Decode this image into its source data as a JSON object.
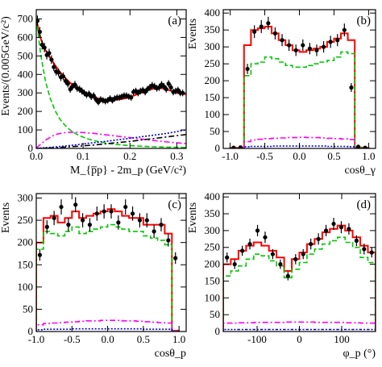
{
  "chart_data": [
    {
      "id": "a",
      "type": "line",
      "panel_label": "(a)",
      "xlabel": "M_{p̅p} - 2m_p (GeV/c²)",
      "ylabel": "Events/(0.005GeV/c²)",
      "xlim": [
        0,
        0.32
      ],
      "ylim": [
        0,
        750
      ],
      "xticks": [
        0,
        0.1,
        0.2,
        0.3
      ],
      "xtick_labels": [
        "0.0",
        "0.1",
        "0.2",
        "0.3"
      ],
      "yticks": [
        0,
        100,
        200,
        300,
        400,
        500,
        600,
        700
      ],
      "ytick_labels": [
        "0",
        "100",
        "200",
        "300",
        "400",
        "500",
        "600",
        "700"
      ],
      "legend": "none",
      "data_points": {
        "x": [
          0.0025,
          0.0075,
          0.0125,
          0.0175,
          0.0225,
          0.0275,
          0.0325,
          0.0375,
          0.0425,
          0.0475,
          0.0525,
          0.0575,
          0.0625,
          0.0675,
          0.0725,
          0.0775,
          0.0825,
          0.0875,
          0.0925,
          0.0975,
          0.1025,
          0.1075,
          0.1125,
          0.1175,
          0.1225,
          0.1275,
          0.1325,
          0.1375,
          0.1425,
          0.1475,
          0.1525,
          0.1575,
          0.1625,
          0.1675,
          0.1725,
          0.1775,
          0.1825,
          0.1875,
          0.1925,
          0.1975,
          0.2025,
          0.2075,
          0.2125,
          0.2175,
          0.2225,
          0.2275,
          0.2325,
          0.2375,
          0.2425,
          0.2475,
          0.2525,
          0.2575,
          0.2625,
          0.2675,
          0.2725,
          0.2775,
          0.2825,
          0.2875,
          0.2925,
          0.2975,
          0.3025,
          0.3075,
          0.3125
        ],
        "y": [
          690,
          630,
          560,
          545,
          505,
          515,
          480,
          440,
          415,
          410,
          385,
          390,
          365,
          350,
          320,
          335,
          345,
          325,
          320,
          310,
          300,
          290,
          295,
          280,
          285,
          265,
          250,
          265,
          260,
          255,
          260,
          270,
          260,
          270,
          275,
          275,
          280,
          285,
          285,
          280,
          275,
          305,
          310,
          300,
          310,
          315,
          305,
          320,
          330,
          340,
          335,
          325,
          330,
          345,
          335,
          320,
          350,
          330,
          305,
          310,
          315,
          300,
          300
        ],
        "err": [
          28,
          27,
          25,
          25,
          24,
          24,
          23,
          22,
          21,
          21,
          21,
          21,
          20,
          20,
          19,
          19,
          20,
          19,
          19,
          19,
          18,
          18,
          18,
          18,
          18,
          17,
          17,
          17,
          17,
          17,
          17,
          17,
          17,
          17,
          17,
          17,
          17,
          18,
          18,
          17,
          17,
          18,
          18,
          18,
          18,
          18,
          18,
          18,
          19,
          19,
          19,
          18,
          19,
          19,
          19,
          18,
          19,
          19,
          18,
          18,
          18,
          18,
          18
        ]
      },
      "series": [
        {
          "name": "total fit",
          "color": "#ff0000",
          "style": "solid",
          "x": [
            0,
            0.005,
            0.01,
            0.02,
            0.03,
            0.04,
            0.05,
            0.06,
            0.07,
            0.08,
            0.09,
            0.1,
            0.11,
            0.12,
            0.13,
            0.14,
            0.15,
            0.16,
            0.17,
            0.18,
            0.19,
            0.2,
            0.21,
            0.22,
            0.23,
            0.24,
            0.25,
            0.26,
            0.27,
            0.28,
            0.29,
            0.3,
            0.31,
            0.32
          ],
          "y": [
            700,
            640,
            590,
            530,
            490,
            450,
            415,
            385,
            360,
            338,
            320,
            303,
            290,
            280,
            272,
            266,
            263,
            262,
            263,
            266,
            271,
            278,
            287,
            297,
            307,
            316,
            323,
            327,
            325,
            318,
            309,
            300,
            295,
            292
          ]
        },
        {
          "name": "fit component (green dashed)",
          "color": "#00c800",
          "style": "dashed",
          "x": [
            0,
            0.005,
            0.01,
            0.02,
            0.03,
            0.04,
            0.05,
            0.06,
            0.07,
            0.08,
            0.09,
            0.1,
            0.11,
            0.12,
            0.14,
            0.16,
            0.18,
            0.2,
            0.22,
            0.24,
            0.26,
            0.28,
            0.3,
            0.32
          ],
          "y": [
            700,
            600,
            500,
            360,
            270,
            205,
            160,
            128,
            104,
            86,
            72,
            61,
            52,
            44,
            33,
            25,
            19,
            15,
            12,
            10,
            8,
            7,
            6,
            5
          ]
        },
        {
          "name": "fit component (magenta dash-dot)",
          "color": "#ff00ff",
          "style": "dashdot",
          "x": [
            0,
            0.02,
            0.04,
            0.06,
            0.08,
            0.1,
            0.12,
            0.14,
            0.16,
            0.18,
            0.2,
            0.22,
            0.24,
            0.26,
            0.28,
            0.3,
            0.32
          ],
          "y": [
            2,
            45,
            75,
            85,
            88,
            86,
            82,
            76,
            70,
            64,
            58,
            52,
            46,
            40,
            35,
            30,
            26
          ]
        },
        {
          "name": "fit component (black dash-dot)",
          "color": "#000000",
          "style": "dashdot",
          "x": [
            0,
            0.04,
            0.08,
            0.12,
            0.16,
            0.2,
            0.24,
            0.28,
            0.32
          ],
          "y": [
            0,
            4,
            10,
            18,
            28,
            38,
            50,
            63,
            75
          ]
        },
        {
          "name": "fit component (blue dotted)",
          "color": "#0000cc",
          "style": "dotted",
          "x": [
            0,
            0.04,
            0.08,
            0.12,
            0.16,
            0.2,
            0.24,
            0.28,
            0.32
          ],
          "y": [
            0,
            8,
            18,
            30,
            42,
            55,
            68,
            82,
            100
          ]
        }
      ]
    },
    {
      "id": "b",
      "type": "bar",
      "panel_label": "(b)",
      "xlabel": "cosθ_γ",
      "ylabel": "Events",
      "xlim": [
        -1.1,
        1.1
      ],
      "ylim": [
        0,
        410
      ],
      "xticks": [
        -1,
        -0.5,
        0,
        0.5,
        1
      ],
      "xtick_labels": [
        "-1.0",
        "-0.5",
        "0.0",
        "0.5",
        "1.0"
      ],
      "yticks": [
        0,
        50,
        100,
        150,
        200,
        250,
        300,
        350,
        400
      ],
      "ytick_labels": [
        "0",
        "50",
        "100",
        "150",
        "200",
        "250",
        "300",
        "350",
        "400"
      ],
      "legend": "none",
      "bin_edges": [
        -1.0,
        -0.9,
        -0.8,
        -0.7,
        -0.6,
        -0.5,
        -0.4,
        -0.3,
        -0.2,
        -0.1,
        0.0,
        0.1,
        0.2,
        0.3,
        0.4,
        0.5,
        0.6,
        0.7,
        0.8,
        0.9,
        1.0
      ],
      "data_points": {
        "x": [
          -0.95,
          -0.85,
          -0.75,
          -0.65,
          -0.55,
          -0.45,
          -0.35,
          -0.25,
          -0.15,
          -0.05,
          0.05,
          0.15,
          0.25,
          0.35,
          0.45,
          0.55,
          0.65,
          0.75,
          0.85,
          0.95
        ],
        "y": [
          2,
          3,
          235,
          345,
          360,
          370,
          340,
          320,
          305,
          290,
          305,
          295,
          290,
          300,
          315,
          320,
          350,
          180,
          5,
          2
        ],
        "err": [
          1.5,
          2,
          15,
          19,
          19,
          19,
          18,
          18,
          17,
          17,
          17,
          17,
          17,
          17,
          18,
          18,
          19,
          13,
          2,
          1.5
        ]
      },
      "series": [
        {
          "name": "fit (red histogram)",
          "color": "#ff0000",
          "style": "solid",
          "values": [
            2,
            2,
            305,
            350,
            355,
            360,
            340,
            320,
            305,
            290,
            285,
            290,
            295,
            300,
            315,
            325,
            340,
            320,
            3,
            2
          ]
        },
        {
          "name": "component (green dashed histogram)",
          "color": "#00c800",
          "style": "dashed",
          "values": [
            1,
            1,
            215,
            250,
            255,
            270,
            265,
            255,
            245,
            240,
            240,
            245,
            250,
            255,
            260,
            270,
            285,
            280,
            2,
            1
          ]
        },
        {
          "name": "component (magenta dash-dot histogram)",
          "color": "#ff00ff",
          "style": "dashdot",
          "values": [
            0,
            0,
            20,
            25,
            27,
            29,
            30,
            31,
            32,
            32,
            33,
            32,
            32,
            31,
            30,
            29,
            28,
            26,
            0,
            0
          ]
        },
        {
          "name": "component (blue dotted histogram)",
          "color": "#0000cc",
          "style": "dotted",
          "values": [
            0,
            0,
            5,
            6,
            6,
            6,
            7,
            7,
            7,
            7,
            7,
            7,
            7,
            7,
            6,
            6,
            6,
            5,
            0,
            0
          ]
        }
      ]
    },
    {
      "id": "c",
      "type": "bar",
      "panel_label": "(c)",
      "xlabel": "cosθ_p",
      "ylabel": "Events",
      "xlim": [
        -1.0,
        1.1
      ],
      "ylim": [
        0,
        310
      ],
      "xticks": [
        -1,
        -0.5,
        0,
        0.5,
        1
      ],
      "xtick_labels": [
        "-1.0",
        "-0.5",
        "0.0",
        "0.5",
        "1.0"
      ],
      "yticks": [
        0,
        50,
        100,
        150,
        200,
        250,
        300
      ],
      "ytick_labels": [
        "0",
        "50",
        "100",
        "150",
        "200",
        "250",
        "300"
      ],
      "legend": "none",
      "bin_edges": [
        -1.0,
        -0.9,
        -0.8,
        -0.7,
        -0.6,
        -0.5,
        -0.4,
        -0.3,
        -0.2,
        -0.1,
        0.0,
        0.1,
        0.2,
        0.3,
        0.4,
        0.5,
        0.6,
        0.7,
        0.8,
        0.9,
        1.0
      ],
      "data_points": {
        "x": [
          -0.95,
          -0.85,
          -0.75,
          -0.65,
          -0.55,
          -0.45,
          -0.35,
          -0.25,
          -0.15,
          -0.05,
          0.05,
          0.15,
          0.25,
          0.35,
          0.45,
          0.55,
          0.65,
          0.75,
          0.85,
          0.95
        ],
        "y": [
          172,
          235,
          255,
          280,
          240,
          285,
          250,
          240,
          265,
          270,
          270,
          245,
          280,
          265,
          250,
          250,
          225,
          240,
          205,
          165
        ],
        "err": [
          13,
          15,
          16,
          17,
          15,
          17,
          16,
          15,
          16,
          16,
          16,
          16,
          17,
          16,
          16,
          16,
          15,
          15,
          14,
          13
        ]
      },
      "series": [
        {
          "name": "fit (red histogram)",
          "color": "#ff0000",
          "style": "solid",
          "values": [
            200,
            255,
            260,
            245,
            255,
            270,
            255,
            260,
            265,
            270,
            275,
            270,
            260,
            255,
            255,
            240,
            240,
            240,
            220,
            2
          ]
        },
        {
          "name": "component (green dashed histogram)",
          "color": "#00c800",
          "style": "dashed",
          "values": [
            185,
            225,
            220,
            215,
            225,
            235,
            220,
            225,
            230,
            235,
            240,
            235,
            230,
            225,
            225,
            215,
            210,
            205,
            195,
            2
          ]
        },
        {
          "name": "component (magenta dash-dot histogram)",
          "color": "#ff00ff",
          "style": "dashdot",
          "values": [
            15,
            18,
            19,
            20,
            21,
            22,
            23,
            24,
            24,
            25,
            25,
            25,
            24,
            24,
            23,
            22,
            21,
            20,
            19,
            1
          ]
        },
        {
          "name": "component (blue dotted histogram)",
          "color": "#0000cc",
          "style": "dotted",
          "values": [
            4,
            5,
            5,
            5,
            5,
            6,
            6,
            6,
            6,
            6,
            6,
            6,
            6,
            6,
            6,
            5,
            5,
            5,
            5,
            0
          ]
        }
      ]
    },
    {
      "id": "d",
      "type": "bar",
      "panel_label": "(d)",
      "xlabel": "φ_p (°)",
      "ylabel": "Events",
      "xlim": [
        -180,
        180
      ],
      "ylim": [
        0,
        410
      ],
      "xticks": [
        -100,
        0,
        100
      ],
      "xtick_labels": [
        "-100",
        "0",
        "100"
      ],
      "yticks": [
        0,
        50,
        100,
        150,
        200,
        250,
        300,
        350,
        400
      ],
      "ytick_labels": [
        "0",
        "50",
        "100",
        "150",
        "200",
        "250",
        "300",
        "350",
        "400"
      ],
      "legend": "none",
      "bin_edges": [
        -180,
        -162,
        -144,
        -126,
        -108,
        -90,
        -72,
        -54,
        -36,
        -18,
        0,
        18,
        36,
        54,
        72,
        90,
        108,
        126,
        144,
        162,
        180
      ],
      "data_points": {
        "x": [
          -171,
          -153,
          -135,
          -117,
          -99,
          -81,
          -63,
          -45,
          -27,
          -9,
          9,
          27,
          45,
          63,
          81,
          99,
          117,
          135,
          153,
          171
        ],
        "y": [
          220,
          200,
          240,
          260,
          300,
          280,
          230,
          200,
          165,
          215,
          230,
          260,
          275,
          300,
          320,
          310,
          305,
          270,
          245,
          235
        ],
        "err": [
          15,
          14,
          15,
          16,
          17,
          17,
          15,
          14,
          13,
          15,
          15,
          16,
          17,
          17,
          18,
          18,
          17,
          16,
          16,
          15
        ]
      },
      "series": [
        {
          "name": "fit (red histogram)",
          "color": "#ff0000",
          "style": "solid",
          "values": [
            200,
            215,
            240,
            255,
            265,
            255,
            240,
            220,
            180,
            215,
            235,
            260,
            275,
            295,
            305,
            315,
            300,
            280,
            255,
            235
          ]
        },
        {
          "name": "component (green dashed histogram)",
          "color": "#00c800",
          "style": "dashed",
          "values": [
            165,
            180,
            195,
            215,
            230,
            225,
            210,
            195,
            160,
            185,
            205,
            230,
            245,
            260,
            270,
            280,
            265,
            250,
            220,
            205
          ]
        },
        {
          "name": "component (magenta dash-dot histogram)",
          "color": "#ff00ff",
          "style": "dashdot",
          "values": [
            25,
            25,
            26,
            26,
            27,
            27,
            27,
            27,
            28,
            28,
            28,
            28,
            27,
            27,
            27,
            27,
            26,
            26,
            25,
            25
          ]
        },
        {
          "name": "component (blue dotted histogram)",
          "color": "#0000cc",
          "style": "dotted",
          "values": [
            6,
            6,
            6,
            6,
            6,
            6,
            6,
            6,
            6,
            6,
            6,
            6,
            6,
            6,
            6,
            6,
            6,
            6,
            6,
            6
          ]
        }
      ]
    }
  ]
}
